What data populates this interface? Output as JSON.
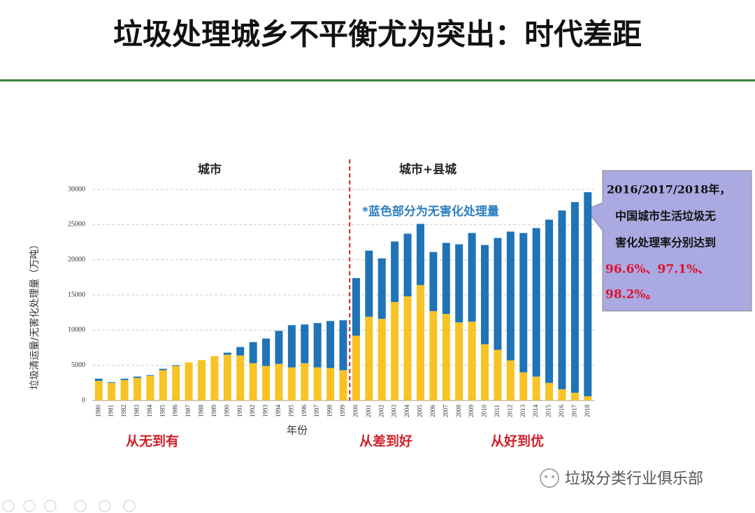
{
  "title": "垃圾处理城乡不平衡尤为突出：时代差距",
  "chart_data": {
    "type": "bar",
    "stacked": true,
    "y_label": "垃圾清运量/无害化处理量（万吨）",
    "x_label": "年份",
    "region_labels": [
      "城市",
      "城市+县城"
    ],
    "note": "*蓝色部分为无害化处理量",
    "phase_labels": [
      "从无到有",
      "从差到好",
      "从好到优"
    ],
    "categories": [
      "1980",
      "1981",
      "1982",
      "1983",
      "1984",
      "1985",
      "1986",
      "1987",
      "1988",
      "1989",
      "1990",
      "1991",
      "1992",
      "1993",
      "1994",
      "1995",
      "1996",
      "1997",
      "1998",
      "1999",
      "2000",
      "2001",
      "2002",
      "2003",
      "2004",
      "2005",
      "2006",
      "2007",
      "2008",
      "2009",
      "2010",
      "2011",
      "2012",
      "2013",
      "2014",
      "2015",
      "2016",
      "2017",
      "2018"
    ],
    "series": [
      {
        "color": "#f7c325",
        "values": [
          2800,
          2500,
          2900,
          3200,
          3500,
          4300,
          4900,
          5400,
          5750,
          6300,
          6500,
          6400,
          5300,
          4900,
          5200,
          4700,
          5300,
          4700,
          4600,
          4300,
          9200,
          11900,
          11600,
          14000,
          14800,
          16400,
          12700,
          12300,
          11100,
          11200,
          8000,
          7200,
          5700,
          4000,
          3400,
          2500,
          1600,
          1100,
          600
        ]
      },
      {
        "color": "#1f73b7",
        "values": [
          300,
          100,
          200,
          200,
          100,
          200,
          100,
          0,
          0,
          0,
          300,
          1200,
          3000,
          3900,
          4700,
          6000,
          5500,
          6300,
          6700,
          7100,
          8200,
          9400,
          8600,
          8600,
          8900,
          8700,
          8400,
          10100,
          11100,
          12600,
          14100,
          15900,
          18300,
          19800,
          21100,
          23200,
          25400,
          27100,
          29000
        ]
      }
    ],
    "ylim": [
      0,
      30000
    ],
    "yticks": [
      0,
      5000,
      10000,
      15000,
      20000,
      25000,
      30000
    ],
    "grid": true
  },
  "callout": {
    "lines": [
      "2016/2017/2018年，",
      "中国城市生活垃圾无",
      "害化处理率分别达到"
    ],
    "highlight_lines": [
      "96.6%、97.1%、",
      "98.2%。"
    ]
  },
  "watermark": "垃圾分类行业俱乐部"
}
